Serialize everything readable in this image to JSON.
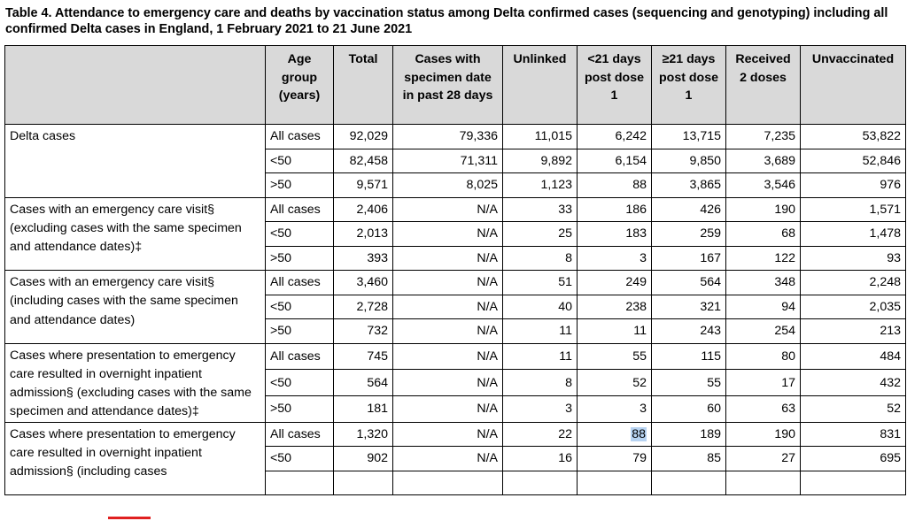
{
  "caption": "Table 4. Attendance to emergency care and deaths by vaccination status among Delta confirmed cases (sequencing and genotyping) including all confirmed Delta cases in England, 1 February 2021 to 21 June 2021",
  "headers": [
    "",
    "Age group (years)",
    "Total",
    "Cases with specimen date in past 28 days",
    "Unlinked",
    "<21 days post dose 1",
    "≥21 days post dose 1",
    "Received 2 doses",
    "Unvaccinated"
  ],
  "groups": [
    {
      "label": "Delta cases",
      "rows": [
        {
          "age": "All cases",
          "values": [
            "92,029",
            "79,336",
            "11,015",
            "6,242",
            "13,715",
            "7,235",
            "53,822"
          ]
        },
        {
          "age": "<50",
          "values": [
            "82,458",
            "71,311",
            "9,892",
            "6,154",
            "9,850",
            "3,689",
            "52,846"
          ]
        },
        {
          "age": ">50",
          "values": [
            "9,571",
            "8,025",
            "1,123",
            "88",
            "3,865",
            "3,546",
            "976"
          ]
        }
      ]
    },
    {
      "label": "Cases with an emergency care visit§ (excluding cases with the same specimen and attendance dates)‡",
      "rows": [
        {
          "age": "All cases",
          "values": [
            "2,406",
            "N/A",
            "33",
            "186",
            "426",
            "190",
            "1,571"
          ]
        },
        {
          "age": "<50",
          "values": [
            "2,013",
            "N/A",
            "25",
            "183",
            "259",
            "68",
            "1,478"
          ]
        },
        {
          "age": ">50",
          "values": [
            "393",
            "N/A",
            "8",
            "3",
            "167",
            "122",
            "93"
          ]
        }
      ]
    },
    {
      "label": "Cases with an emergency care visit§ (including cases with the same specimen and attendance dates)",
      "rows": [
        {
          "age": "All cases",
          "values": [
            "3,460",
            "N/A",
            "51",
            "249",
            "564",
            "348",
            "2,248"
          ]
        },
        {
          "age": "<50",
          "values": [
            "2,728",
            "N/A",
            "40",
            "238",
            "321",
            "94",
            "2,035"
          ]
        },
        {
          "age": ">50",
          "values": [
            "732",
            "N/A",
            "11",
            "11",
            "243",
            "254",
            "213"
          ]
        }
      ]
    },
    {
      "label": "Cases where presentation to emergency care resulted in overnight inpatient admission§ (excluding cases with the same specimen and attendance dates)‡",
      "rows": [
        {
          "age": "All cases",
          "values": [
            "745",
            "N/A",
            "11",
            "55",
            "115",
            "80",
            "484"
          ]
        },
        {
          "age": "<50",
          "values": [
            "564",
            "N/A",
            "8",
            "52",
            "55",
            "17",
            "432"
          ]
        },
        {
          "age": ">50",
          "values": [
            "181",
            "N/A",
            "3",
            "3",
            "60",
            "63",
            "52"
          ]
        }
      ]
    },
    {
      "label": "Cases where presentation to emergency care resulted in overnight inpatient admission§ (including cases",
      "rows": [
        {
          "age": "All cases",
          "values": [
            "1,320",
            "N/A",
            "22",
            "88",
            "189",
            "190",
            "831"
          ]
        },
        {
          "age": "<50",
          "values": [
            "902",
            "N/A",
            "16",
            "79",
            "85",
            "27",
            "695"
          ]
        },
        {
          "age": "",
          "values": [
            "",
            "",
            "",
            "",
            "",
            "",
            ""
          ]
        }
      ]
    }
  ],
  "highlight": {
    "group": 4,
    "row": 0,
    "col": 3
  },
  "colors": {
    "header_bg": "#d9d9d9",
    "selection": "#b7d3f2",
    "marker": "#e02020"
  }
}
